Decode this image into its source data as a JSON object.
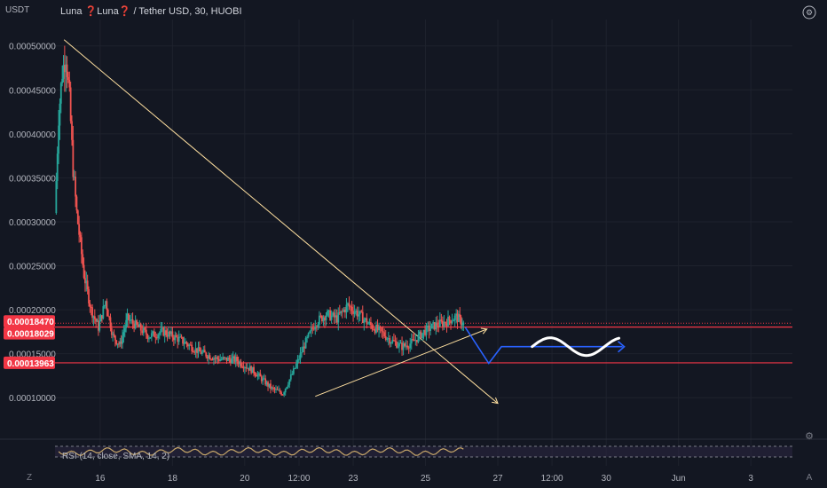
{
  "header": {
    "currency_label": "USDT",
    "symbol_title": "Luna ❓Luna❓ / Tether USD, 30, HUOBI"
  },
  "footer": {
    "timezone_left": "Z",
    "log_toggle": "A"
  },
  "chart_data": {
    "type": "line",
    "title": "Luna ❓Luna❓ / Tether USD, 30, HUOBI",
    "ylabel": "USDT",
    "ylim": [
      7.8e-05,
      0.00053
    ],
    "y_ticks": [
      "0.00010000",
      "0.00015000",
      "0.00020000",
      "0.00025000",
      "0.00030000",
      "0.00035000",
      "0.00040000",
      "0.00045000",
      "0.00050000"
    ],
    "y_tick_values": [
      0.0001,
      0.00015,
      0.0002,
      0.00025,
      0.0003,
      0.00035,
      0.0004,
      0.00045,
      0.0005
    ],
    "x_ticks": [
      "16",
      "18",
      "20",
      "12:00",
      "23",
      "25",
      "27",
      "12:00",
      "30",
      "Jun",
      "3"
    ],
    "x_tick_values": [
      1.25,
      3.25,
      5.25,
      6.75,
      8.25,
      10.25,
      12.25,
      13.75,
      15.25,
      17.25,
      19.25
    ],
    "xlim": [
      0,
      20.4
    ],
    "price_labels": [
      {
        "text": "0.00018470",
        "value": 0.0001847,
        "color": "#f23645"
      },
      {
        "text": "0.00018029",
        "value": 0.00018029,
        "color": "#f23645"
      },
      {
        "text": "0.00013963",
        "value": 0.00013963,
        "color": "#f23645"
      }
    ],
    "horizontal_lines": [
      {
        "value": 0.00018029,
        "color": "#f23645"
      },
      {
        "value": 0.00013963,
        "color": "#f23645"
      }
    ],
    "dotted_line": {
      "value": 0.0001847,
      "color": "#f23645"
    },
    "series": [
      {
        "x": [
          0.0,
          0.1,
          0.2,
          0.3,
          0.4,
          0.5,
          0.6,
          0.8,
          1.0,
          1.2,
          1.4,
          1.6,
          1.8,
          2.0,
          2.3,
          2.6,
          3.0,
          3.5,
          4.0,
          4.5,
          5.0,
          5.5,
          6.0,
          6.3,
          6.6,
          6.9,
          7.2,
          7.5,
          7.8,
          8.1,
          8.4,
          8.7,
          9.0,
          9.3,
          9.6,
          9.9,
          10.2,
          10.5,
          10.8,
          11.1,
          11.3
        ],
        "values": [
          0.00031,
          0.00042,
          0.00047,
          0.00049,
          0.00044,
          0.00036,
          0.00031,
          0.00024,
          0.0002,
          0.00018,
          0.00021,
          0.00017,
          0.00016,
          0.00019,
          0.00018,
          0.00017,
          0.000175,
          0.000165,
          0.000152,
          0.000144,
          0.000143,
          0.00013,
          0.00011,
          0.000105,
          0.00013,
          0.00016,
          0.000185,
          0.000195,
          0.00019,
          0.000205,
          0.000195,
          0.000183,
          0.000175,
          0.000165,
          0.000158,
          0.000163,
          0.000175,
          0.000182,
          0.000186,
          0.000192,
          0.000184
        ],
        "color_up": "#26a69a",
        "color_down": "#ef5350"
      }
    ],
    "annotations": [
      {
        "kind": "trend-line",
        "from": [
          0.25,
          0.000507
        ],
        "to": [
          12.25,
          9.35e-05
        ],
        "color": "#ffe0a0"
      },
      {
        "kind": "trend-line",
        "from": [
          7.2,
          0.0001015
        ],
        "to": [
          11.95,
          0.000178
        ],
        "color": "#ffe0a0"
      },
      {
        "kind": "path",
        "points": [
          [
            11.35,
            0.00018
          ],
          [
            12.0,
            0.000139
          ],
          [
            12.35,
            0.000158
          ],
          [
            15.7,
            0.000158
          ]
        ],
        "color": "#2962ff"
      }
    ],
    "oscillator": {
      "label": "RSI (14, close, SMA, 14, 2)",
      "upper": 70,
      "lower": 30,
      "color": "#c8a86a"
    },
    "grid": true,
    "legend": "none"
  }
}
